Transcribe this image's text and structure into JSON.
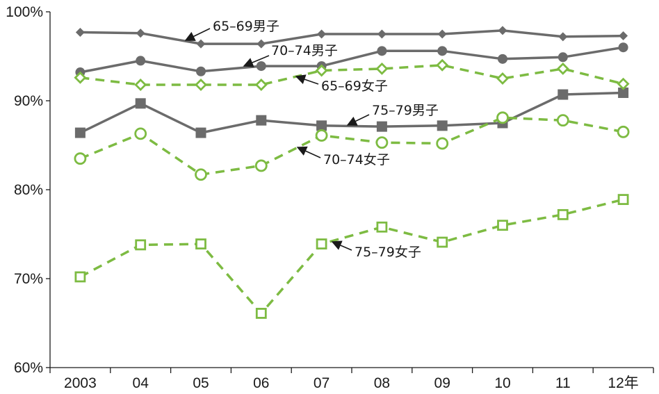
{
  "chart_data": {
    "type": "line",
    "categories": [
      "2003",
      "04",
      "05",
      "06",
      "07",
      "08",
      "09",
      "10",
      "11",
      "12年"
    ],
    "ylim": [
      60,
      100
    ],
    "yticks": [
      "60%",
      "70%",
      "80%",
      "90%",
      "100%"
    ],
    "grid": false,
    "series": [
      {
        "name": "65–69男子",
        "sex": "male",
        "marker": "diamond",
        "color": "#6b6b6b",
        "style": "solid",
        "values": [
          97.7,
          97.6,
          96.4,
          96.4,
          97.5,
          97.5,
          97.5,
          97.9,
          97.2,
          97.3
        ]
      },
      {
        "name": "70–74男子",
        "sex": "male",
        "marker": "circle",
        "color": "#6b6b6b",
        "style": "solid",
        "values": [
          93.2,
          94.5,
          93.3,
          93.9,
          93.9,
          95.6,
          95.6,
          94.7,
          94.9,
          96.0
        ]
      },
      {
        "name": "75–79男子",
        "sex": "male",
        "marker": "square",
        "color": "#6b6b6b",
        "style": "solid",
        "values": [
          86.4,
          89.7,
          86.4,
          87.8,
          87.2,
          87.1,
          87.2,
          87.5,
          90.7,
          90.9
        ]
      },
      {
        "name": "65–69女子",
        "sex": "female",
        "marker": "diamond",
        "color": "#7dbb42",
        "style": "dashed",
        "values": [
          92.6,
          91.8,
          91.8,
          91.8,
          93.4,
          93.6,
          94.0,
          92.5,
          93.6,
          91.9
        ]
      },
      {
        "name": "70–74女子",
        "sex": "female",
        "marker": "circle",
        "color": "#7dbb42",
        "style": "dashed",
        "values": [
          83.5,
          86.3,
          81.7,
          82.7,
          86.1,
          85.3,
          85.2,
          88.1,
          87.8,
          86.5
        ]
      },
      {
        "name": "75–79女子",
        "sex": "female",
        "marker": "square",
        "color": "#7dbb42",
        "style": "dashed",
        "values": [
          70.2,
          73.8,
          73.9,
          66.1,
          73.9,
          75.8,
          74.1,
          76.0,
          77.2,
          78.9
        ]
      }
    ],
    "annotations": [
      {
        "text": "65–69男子",
        "series": 0
      },
      {
        "text": "70–74男子",
        "series": 1
      },
      {
        "text": "65–69女子",
        "series": 3
      },
      {
        "text": "75–79男子",
        "series": 2
      },
      {
        "text": "70–74女子",
        "series": 4
      },
      {
        "text": "75–79女子",
        "series": 5
      }
    ]
  }
}
